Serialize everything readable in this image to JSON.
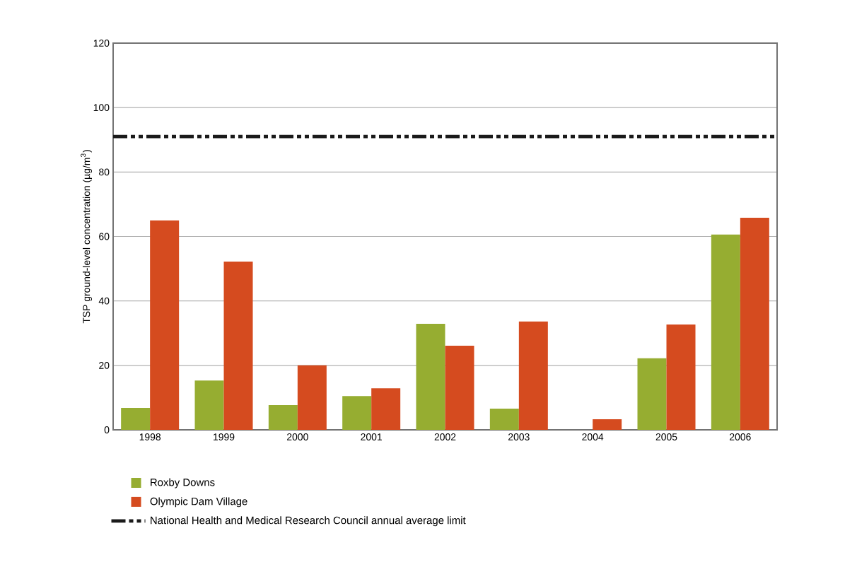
{
  "chart_data": {
    "type": "bar",
    "categories": [
      "1998",
      "1999",
      "2000",
      "2001",
      "2002",
      "2003",
      "2004",
      "2005",
      "2006"
    ],
    "series": [
      {
        "name": "Roxby Downs",
        "color": "#96ad31",
        "values": [
          6.8,
          15.3,
          7.7,
          10.5,
          32.9,
          6.6,
          0,
          22.2,
          60.6
        ]
      },
      {
        "name": "Olympic Dam Village",
        "color": "#d54b1f",
        "values": [
          65,
          52.2,
          20,
          12.9,
          26.1,
          33.6,
          3.3,
          32.7,
          65.8
        ]
      }
    ],
    "ylabel": "TSP ground-level concentration (µg/m$^{3}$)",
    "ylim": [
      0,
      120
    ],
    "yticks": [
      0,
      20,
      40,
      60,
      80,
      100,
      120
    ],
    "grid": "y",
    "legend": "bottom",
    "ref_lines": [
      {
        "axis": "y",
        "value": 91,
        "label": "National Health and Medical Research Council annual average limit",
        "color": "#1a1a1a",
        "line_style": "dashdotdot"
      }
    ]
  }
}
